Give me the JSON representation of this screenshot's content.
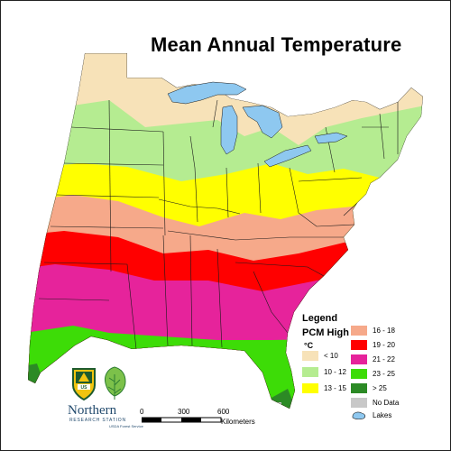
{
  "title": "Mean Annual Temperature",
  "legend": {
    "title": "Legend",
    "subtitle": "PCM High",
    "unit": "°C",
    "items": [
      {
        "label": "< 10",
        "color": "#f7e2b8"
      },
      {
        "label": "10 - 12",
        "color": "#b5ec91"
      },
      {
        "label": "13 - 15",
        "color": "#ffff00"
      },
      {
        "label": "16 - 18",
        "color": "#f6a98a"
      },
      {
        "label": "19 - 20",
        "color": "#ff0000"
      },
      {
        "label": "21 - 22",
        "color": "#e6239b"
      },
      {
        "label": "23 - 25",
        "color": "#3ddc07"
      },
      {
        "label": "> 25",
        "color": "#2c8a25"
      },
      {
        "label": "No Data",
        "color": "#c8c8c8"
      },
      {
        "label": "Lakes",
        "color": "#8ec8f0"
      }
    ]
  },
  "scale_bar": {
    "ticks": [
      "0",
      "300",
      "600"
    ],
    "unit": "Kilometers"
  },
  "logo": {
    "name": "Northern",
    "line1": "RESEARCH STATION",
    "line2": "USDA Forest Service",
    "shield_text": "US"
  }
}
